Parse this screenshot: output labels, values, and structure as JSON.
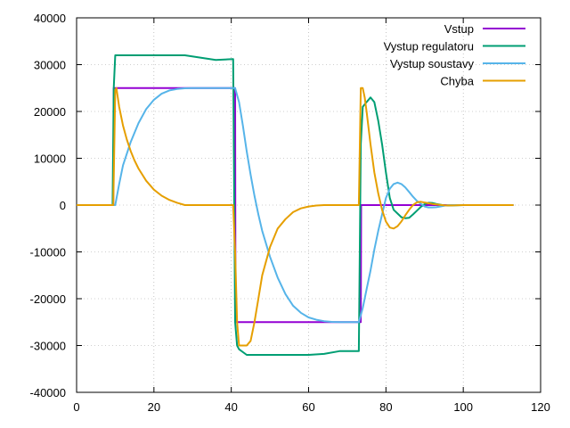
{
  "chart_data": {
    "type": "line",
    "title": "",
    "xlabel": "",
    "ylabel": "",
    "xlim": [
      0,
      120
    ],
    "ylim": [
      -40000,
      40000
    ],
    "xticks": [
      0,
      20,
      40,
      60,
      80,
      100,
      120
    ],
    "yticks": [
      -40000,
      -30000,
      -20000,
      -10000,
      0,
      10000,
      20000,
      30000,
      40000
    ],
    "xtick_labels": [
      "0",
      "20",
      "40",
      "60",
      "80",
      "100",
      "120"
    ],
    "ytick_labels": [
      "-40000",
      "-30000",
      "-20000",
      "-10000",
      "0",
      "10000",
      "20000",
      "30000",
      "40000"
    ],
    "grid": true,
    "legend_position": "top-right",
    "series": [
      {
        "name": "Vstup",
        "color": "#9400d3",
        "x": [
          0,
          9.5,
          9.6,
          41,
          41.1,
          73.5,
          73.6,
          113
        ],
        "y": [
          0,
          0,
          25000,
          25000,
          -25000,
          -25000,
          0,
          0
        ]
      },
      {
        "name": "Vystup regulatoru",
        "color": "#009e73",
        "x": [
          0,
          9.3,
          9.6,
          10,
          20,
          28,
          32,
          36,
          40.5,
          41,
          41.5,
          42,
          44,
          50,
          58,
          60,
          64,
          68,
          73,
          73.5,
          74,
          75,
          76,
          77,
          78,
          79,
          80,
          81,
          82,
          83,
          84,
          85,
          86,
          87,
          88,
          89,
          90,
          91,
          92,
          93,
          94,
          95,
          96,
          98,
          100,
          102,
          105,
          110,
          113
        ],
        "y": [
          0,
          0,
          25000,
          32000,
          32000,
          32000,
          31500,
          31000,
          31200,
          -25000,
          -30000,
          -30800,
          -32000,
          -32000,
          -32000,
          -32000,
          -31800,
          -31200,
          -31200,
          13000,
          21000,
          22000,
          23000,
          22000,
          18000,
          13000,
          7000,
          1500,
          -1000,
          -1800,
          -2600,
          -2800,
          -2700,
          -2000,
          -1200,
          -400,
          200,
          500,
          450,
          250,
          100,
          -80,
          -100,
          -50,
          0,
          0,
          0,
          0,
          0
        ]
      },
      {
        "name": "Vystup soustavy",
        "color": "#56b4e9",
        "x": [
          0,
          9.5,
          10,
          11,
          12,
          14,
          16,
          18,
          20,
          22,
          24,
          26,
          28,
          30,
          32,
          34,
          36,
          38,
          40,
          41,
          42,
          43,
          44,
          45,
          46,
          47,
          48,
          50,
          52,
          54,
          56,
          58,
          60,
          62,
          64,
          66,
          68,
          70,
          72,
          73,
          74,
          75,
          76,
          77,
          78,
          79,
          80,
          81,
          82,
          83,
          84,
          85,
          86,
          87,
          88,
          89,
          90,
          91,
          92,
          93,
          94,
          95,
          96,
          98,
          100,
          102,
          105,
          110,
          113
        ],
        "y": [
          0,
          0,
          0,
          4500,
          8500,
          13500,
          17500,
          20500,
          22500,
          23800,
          24500,
          24800,
          24950,
          25000,
          25000,
          25000,
          25000,
          25000,
          25000,
          25000,
          22000,
          17000,
          11500,
          6500,
          2000,
          -2000,
          -5500,
          -11000,
          -15500,
          -19000,
          -21500,
          -23000,
          -24000,
          -24500,
          -24800,
          -24950,
          -25000,
          -25000,
          -25000,
          -25000,
          -22000,
          -18000,
          -14000,
          -9500,
          -5500,
          -2000,
          1500,
          3500,
          4500,
          4800,
          4500,
          3800,
          2800,
          1800,
          900,
          300,
          -300,
          -500,
          -500,
          -450,
          -300,
          -150,
          0,
          0,
          0,
          0,
          0,
          0,
          0
        ]
      },
      {
        "name": "Chyba",
        "color": "#e69f00",
        "x": [
          0,
          9.5,
          10,
          10.3,
          11,
          12,
          13,
          14,
          15,
          16,
          18,
          20,
          22,
          24,
          26,
          28,
          30,
          35,
          40,
          40.5,
          41,
          41.5,
          42,
          43,
          44,
          45,
          46,
          47,
          48,
          50,
          52,
          54,
          56,
          58,
          60,
          62,
          64,
          66,
          68,
          70,
          72,
          73,
          73.5,
          74,
          74.5,
          75,
          76,
          77,
          78,
          79,
          80,
          81,
          82,
          83,
          84,
          85,
          86,
          87,
          88,
          89,
          90,
          91,
          92,
          93,
          94,
          95,
          96,
          98,
          100,
          102,
          105,
          110,
          113
        ],
        "y": [
          0,
          0,
          24500,
          25000,
          21000,
          17000,
          14000,
          11500,
          9500,
          7800,
          5200,
          3300,
          2000,
          1100,
          500,
          0,
          0,
          0,
          0,
          0,
          -10000,
          -25000,
          -30000,
          -30000,
          -30000,
          -29000,
          -25000,
          -20000,
          -15000,
          -9000,
          -5000,
          -3000,
          -1500,
          -700,
          -300,
          -100,
          0,
          0,
          0,
          0,
          0,
          0,
          25000,
          25000,
          23000,
          20000,
          13000,
          7000,
          2500,
          -1000,
          -3500,
          -4800,
          -5000,
          -4500,
          -3500,
          -2200,
          -1000,
          0,
          600,
          700,
          550,
          400,
          250,
          150,
          50,
          -50,
          -80,
          -50,
          0,
          0,
          0,
          0,
          0
        ]
      }
    ]
  }
}
